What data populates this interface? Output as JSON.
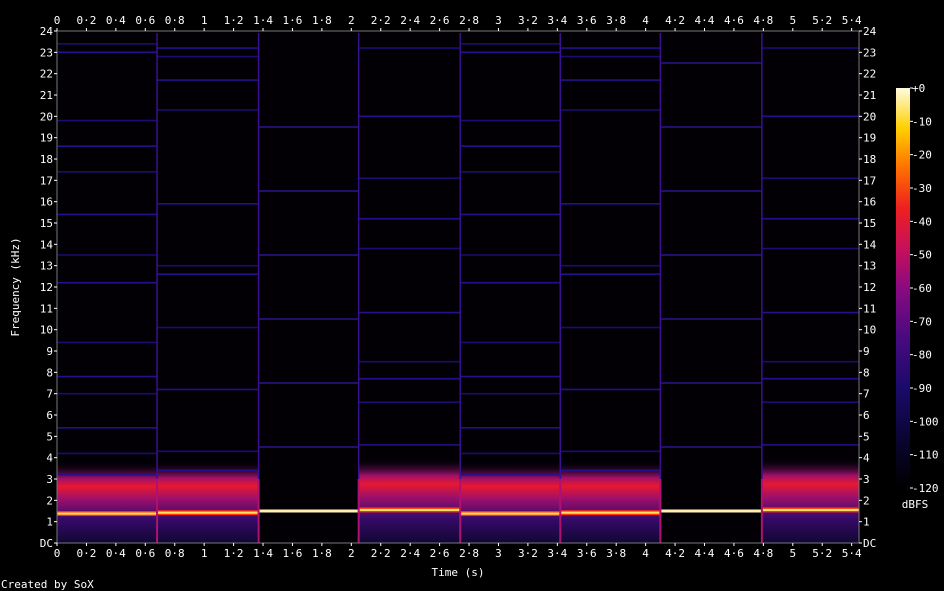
{
  "chart_data": {
    "type": "heatmap",
    "subtype": "spectrogram",
    "xlabel": "Time (s)",
    "ylabel": "Frequency (kHz)",
    "xlim": [
      0,
      5.45
    ],
    "ylim": [
      0,
      24
    ],
    "x_ticks": [
      "0",
      "0·2",
      "0·4",
      "0·6",
      "0·8",
      "1",
      "1·2",
      "1·4",
      "1·6",
      "1·8",
      "2",
      "2·2",
      "2·4",
      "2·6",
      "2·8",
      "3",
      "3·2",
      "3·4",
      "3·6",
      "3·8",
      "4",
      "4·2",
      "4·4",
      "4·6",
      "4·8",
      "5",
      "5·2",
      "5·4"
    ],
    "y_ticks": [
      "DC",
      "1",
      "2",
      "3",
      "4",
      "5",
      "6",
      "7",
      "8",
      "9",
      "10",
      "11",
      "12",
      "13",
      "14",
      "15",
      "16",
      "17",
      "18",
      "19",
      "20",
      "21",
      "22",
      "23",
      "24"
    ],
    "colorbar": {
      "label": "dBFS",
      "ticks": [
        "+0",
        "-10",
        "-20",
        "-30",
        "-40",
        "-50",
        "-60",
        "-70",
        "-80",
        "-90",
        "-100",
        "-110",
        "-120"
      ],
      "range": [
        -120,
        0
      ]
    },
    "segments": [
      {
        "t0": 0.0,
        "t1": 0.68,
        "fundamental_khz": 1.38,
        "style": "rich",
        "harmonics_khz": [
          3.2,
          4.2,
          5.4,
          7.0,
          7.8,
          9.4,
          12.2,
          13.5,
          15.4,
          17.4,
          18.6,
          19.8,
          23.0,
          23.4
        ]
      },
      {
        "t0": 0.68,
        "t1": 1.37,
        "fundamental_khz": 1.42,
        "style": "rich",
        "harmonics_khz": [
          3.4,
          4.3,
          7.2,
          10.1,
          12.6,
          13.0,
          15.9,
          20.3,
          21.7,
          22.8,
          23.2
        ]
      },
      {
        "t0": 1.37,
        "t1": 2.05,
        "fundamental_khz": 1.5,
        "style": "pure",
        "harmonics_khz": [
          4.5,
          7.5,
          10.5,
          13.5,
          16.5,
          19.5
        ]
      },
      {
        "t0": 2.05,
        "t1": 2.74,
        "fundamental_khz": 1.55,
        "style": "rich",
        "harmonics_khz": [
          4.6,
          6.6,
          7.7,
          8.5,
          10.8,
          13.8,
          15.2,
          17.1,
          20.0,
          23.2
        ]
      },
      {
        "t0": 2.74,
        "t1": 3.42,
        "fundamental_khz": 1.38,
        "style": "rich",
        "harmonics_khz": [
          3.2,
          4.2,
          5.4,
          7.0,
          7.8,
          9.4,
          12.2,
          13.5,
          15.4,
          17.4,
          18.6,
          19.8,
          23.0,
          23.4
        ]
      },
      {
        "t0": 3.42,
        "t1": 4.1,
        "fundamental_khz": 1.42,
        "style": "rich",
        "harmonics_khz": [
          3.4,
          4.3,
          7.2,
          10.1,
          12.6,
          13.0,
          15.9,
          20.3,
          21.7,
          22.8,
          23.2
        ]
      },
      {
        "t0": 4.1,
        "t1": 4.79,
        "fundamental_khz": 1.5,
        "style": "pure",
        "harmonics_khz": [
          4.5,
          7.5,
          10.5,
          13.5,
          16.5,
          19.5,
          22.5
        ]
      },
      {
        "t0": 4.79,
        "t1": 5.45,
        "fundamental_khz": 1.55,
        "style": "rich",
        "harmonics_khz": [
          4.6,
          6.6,
          7.7,
          8.5,
          10.8,
          13.8,
          15.2,
          17.1,
          20.0,
          23.2
        ]
      }
    ]
  },
  "footer": {
    "credit": "Created by SoX"
  }
}
